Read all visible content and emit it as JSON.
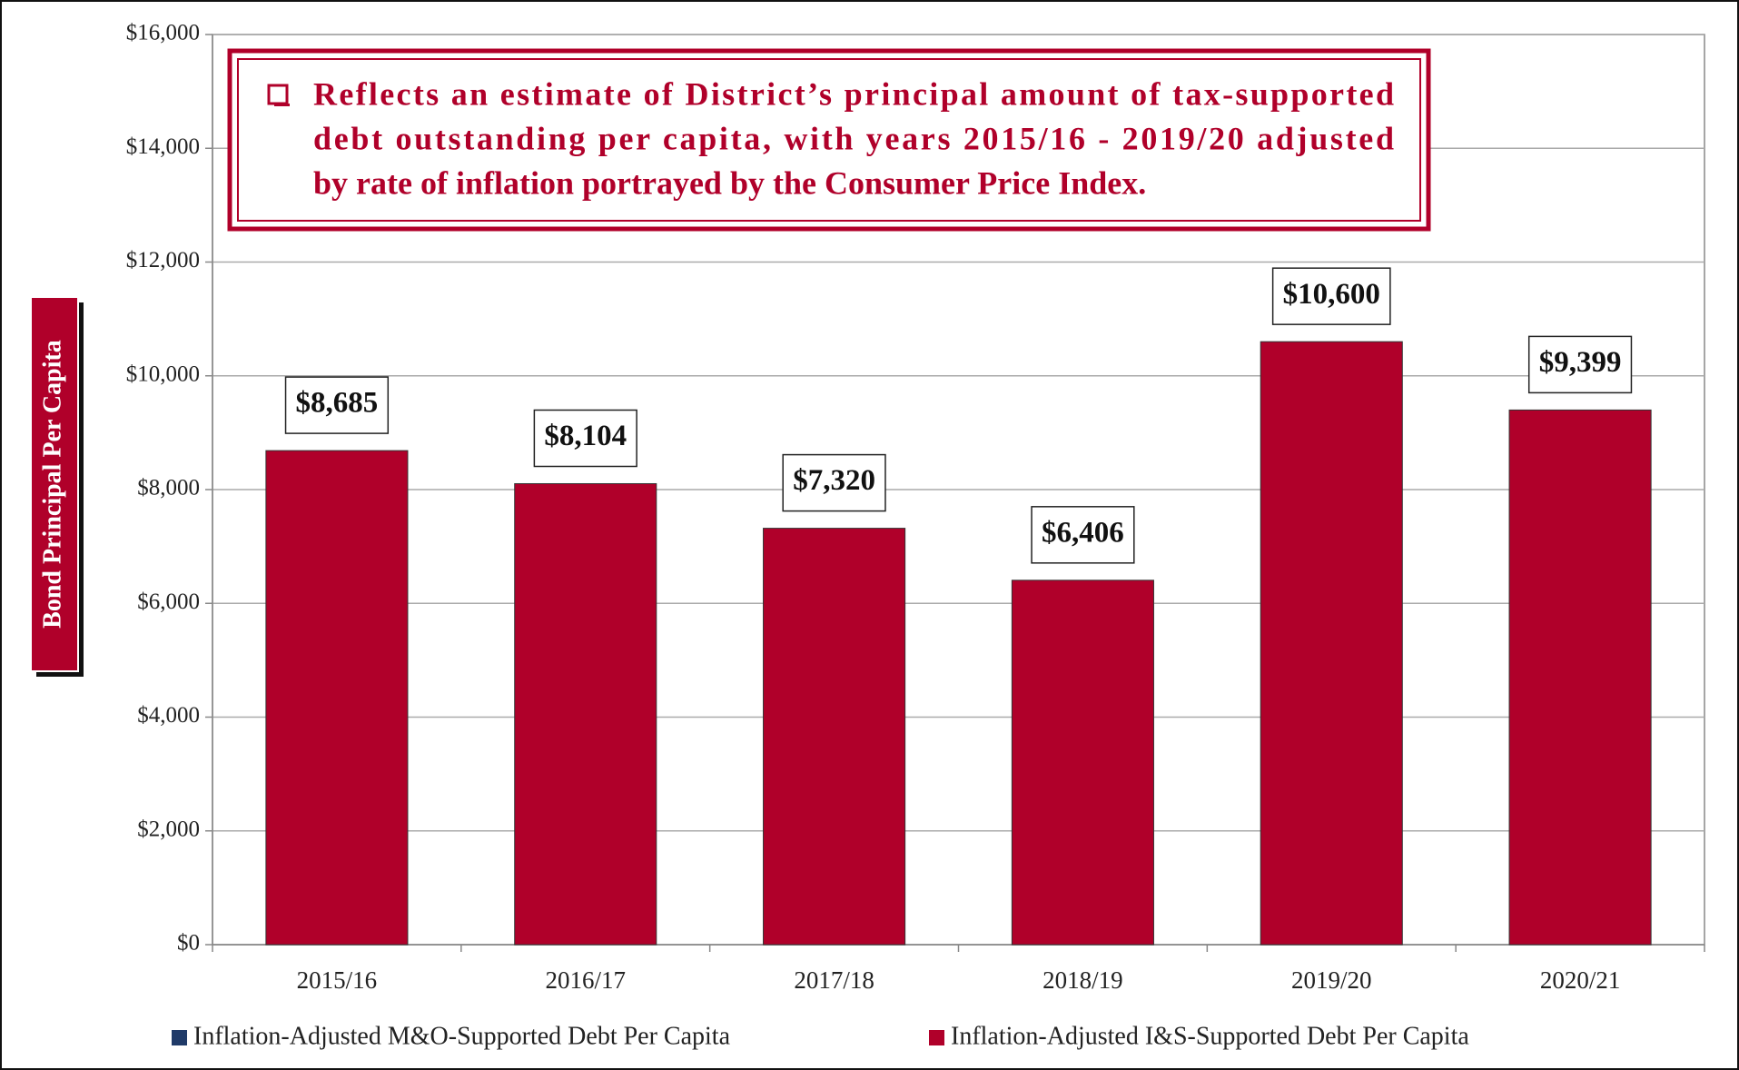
{
  "chart_data": {
    "type": "bar",
    "stacked": true,
    "annotation": [
      "Reflects an estimate of District’s principal amount of tax-supported",
      "debt outstanding per capita, with years 2015/16 - 2019/20 adjusted",
      "by rate of inflation portrayed by the Consumer Price Index."
    ],
    "y_label": "Bond Principal Per Capita",
    "categories": [
      "2015/16",
      "2016/17",
      "2017/18",
      "2018/19",
      "2019/20",
      "2020/21"
    ],
    "series": [
      {
        "name": "Inflation-Adjusted M&O-Supported Debt Per Capita",
        "color": "#1f3a68",
        "values": [
          0,
          0,
          0,
          0,
          0,
          0
        ]
      },
      {
        "name": "Inflation-Adjusted I&S-Supported Debt Per Capita",
        "color": "#b0002a",
        "values": [
          8685,
          8104,
          7320,
          6406,
          10600,
          9399
        ],
        "value_labels": [
          "$8,685",
          "$8,104",
          "$7,320",
          "$6,406",
          "$10,600",
          "$9,399"
        ]
      }
    ],
    "ylim": [
      0,
      16000
    ],
    "yticks": [
      {
        "value": 0,
        "label": "$0"
      },
      {
        "value": 2000,
        "label": "$2,000"
      },
      {
        "value": 4000,
        "label": "$4,000"
      },
      {
        "value": 6000,
        "label": "$6,000"
      },
      {
        "value": 8000,
        "label": "$8,000"
      },
      {
        "value": 10000,
        "label": "$10,000"
      },
      {
        "value": 12000,
        "label": "$12,000"
      },
      {
        "value": 14000,
        "label": "$14,000"
      },
      {
        "value": 16000,
        "label": "$16,000"
      }
    ],
    "grid": true,
    "legend": "bottom"
  }
}
